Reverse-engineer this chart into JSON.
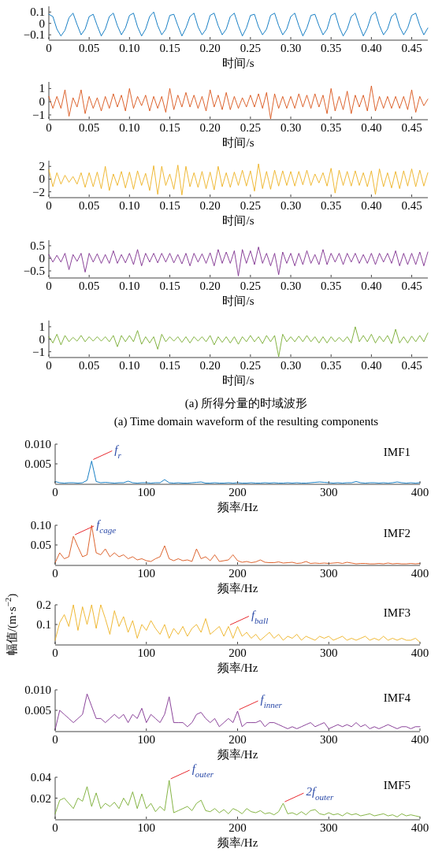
{
  "chart_data": [
    {
      "type": "line",
      "xlabel": "时间/s",
      "xlim": [
        0,
        0.47
      ],
      "ylim": [
        -0.14,
        0.15
      ],
      "xticks": [
        0,
        {
          "value": 0.05,
          "label": "0.05"
        },
        {
          "value": 0.1,
          "label": "0.10"
        },
        {
          "value": 0.15,
          "label": "0.15"
        },
        {
          "value": 0.2,
          "label": "0.20"
        },
        {
          "value": 0.25,
          "label": "0.25"
        },
        {
          "value": 0.3,
          "label": "0.30"
        },
        {
          "value": 0.35,
          "label": "0.35"
        },
        {
          "value": 0.4,
          "label": "0.40"
        },
        {
          "value": 0.45,
          "label": "0.45"
        }
      ],
      "yticks": [
        {
          "value": -0.1,
          "label": "−0.1"
        },
        0,
        0.1
      ],
      "x": [
        0,
        0.005,
        0.01,
        0.015,
        0.02,
        0.025,
        0.03,
        0.035,
        0.04,
        0.045,
        0.05,
        0.055,
        0.06,
        0.065,
        0.07,
        0.075,
        0.08,
        0.085,
        0.09,
        0.095,
        0.1,
        0.105,
        0.11,
        0.115,
        0.12,
        0.125,
        0.13,
        0.135,
        0.14,
        0.145,
        0.15,
        0.155,
        0.16,
        0.165,
        0.17,
        0.175,
        0.18,
        0.185,
        0.19,
        0.195,
        0.2,
        0.205,
        0.21,
        0.215,
        0.22,
        0.225,
        0.23,
        0.235,
        0.24,
        0.245,
        0.25,
        0.255,
        0.26,
        0.265,
        0.27,
        0.275,
        0.28,
        0.285,
        0.29,
        0.295,
        0.3,
        0.305,
        0.31,
        0.315,
        0.32,
        0.325,
        0.33,
        0.335,
        0.34,
        0.345,
        0.35,
        0.355,
        0.36,
        0.365,
        0.37,
        0.375,
        0.38,
        0.385,
        0.39,
        0.395,
        0.4,
        0.405,
        0.41,
        0.415,
        0.42,
        0.425,
        0.43,
        0.435,
        0.44,
        0.445,
        0.45,
        0.455,
        0.46,
        0.465,
        0.47
      ],
      "series": [
        {
          "color": "#0072bd",
          "values": [
            0.08,
            0.06,
            -0.05,
            -0.11,
            -0.06,
            0.05,
            0.09,
            -0.01,
            -0.1,
            -0.05,
            0.06,
            0.08,
            -0.02,
            -0.11,
            -0.05,
            0.06,
            0.09,
            -0.02,
            -0.1,
            -0.04,
            0.07,
            0.09,
            -0.03,
            -0.11,
            -0.05,
            0.06,
            0.1,
            -0.02,
            -0.1,
            -0.05,
            0.07,
            0.08,
            -0.02,
            -0.11,
            -0.04,
            0.06,
            0.09,
            -0.03,
            -0.1,
            -0.05,
            0.07,
            0.09,
            -0.02,
            -0.1,
            -0.05,
            0.06,
            0.09,
            -0.02,
            -0.11,
            -0.04,
            0.07,
            0.08,
            -0.03,
            -0.1,
            -0.05,
            0.07,
            0.09,
            -0.02,
            -0.1,
            -0.05,
            0.06,
            0.09,
            -0.02,
            -0.11,
            -0.04,
            0.07,
            0.08,
            -0.02,
            -0.1,
            -0.05,
            0.07,
            0.09,
            -0.03,
            -0.11,
            -0.05,
            0.06,
            0.09,
            -0.02,
            -0.11,
            -0.04,
            0.07,
            0.1,
            -0.02,
            -0.1,
            -0.05,
            0.06,
            0.09,
            -0.03,
            -0.1,
            -0.04,
            0.07,
            0.09,
            -0.02,
            -0.1,
            -0.04
          ]
        }
      ]
    },
    {
      "type": "line",
      "xlabel": "时间/s",
      "xlim": [
        0,
        0.47
      ],
      "ylim": [
        -1.3,
        1.5
      ],
      "xticks": [
        0,
        {
          "value": 0.05,
          "label": "0.05"
        },
        {
          "value": 0.1,
          "label": "0.10"
        },
        {
          "value": 0.15,
          "label": "0.15"
        },
        {
          "value": 0.2,
          "label": "0.20"
        },
        {
          "value": 0.25,
          "label": "0.25"
        },
        {
          "value": 0.3,
          "label": "0.30"
        },
        {
          "value": 0.35,
          "label": "0.35"
        },
        {
          "value": 0.4,
          "label": "0.40"
        },
        {
          "value": 0.45,
          "label": "0.45"
        }
      ],
      "yticks": [
        {
          "value": -1,
          "label": "−1"
        },
        0,
        1
      ],
      "x": [
        0,
        0.005,
        0.01,
        0.015,
        0.02,
        0.025,
        0.03,
        0.035,
        0.04,
        0.045,
        0.05,
        0.055,
        0.06,
        0.065,
        0.07,
        0.075,
        0.08,
        0.085,
        0.09,
        0.095,
        0.1,
        0.105,
        0.11,
        0.115,
        0.12,
        0.125,
        0.13,
        0.135,
        0.14,
        0.145,
        0.15,
        0.155,
        0.16,
        0.165,
        0.17,
        0.175,
        0.18,
        0.185,
        0.19,
        0.195,
        0.2,
        0.205,
        0.21,
        0.215,
        0.22,
        0.225,
        0.23,
        0.235,
        0.24,
        0.245,
        0.25,
        0.255,
        0.26,
        0.265,
        0.27,
        0.275,
        0.28,
        0.285,
        0.29,
        0.295,
        0.3,
        0.305,
        0.31,
        0.315,
        0.32,
        0.325,
        0.33,
        0.335,
        0.34,
        0.345,
        0.35,
        0.355,
        0.36,
        0.365,
        0.37,
        0.375,
        0.38,
        0.385,
        0.39,
        0.395,
        0.4,
        0.405,
        0.41,
        0.415,
        0.42,
        0.425,
        0.43,
        0.435,
        0.44,
        0.445,
        0.45,
        0.455,
        0.46,
        0.465,
        0.47
      ],
      "series": [
        {
          "color": "#d95319",
          "values": [
            0.4,
            -0.5,
            0.4,
            -0.5,
            0.9,
            -1.1,
            0.3,
            -0.4,
            0.9,
            -0.9,
            0.4,
            -0.5,
            0.3,
            -0.7,
            0.4,
            -0.5,
            0.6,
            -0.4,
            0.5,
            -0.7,
            1.0,
            -0.5,
            0.4,
            -0.3,
            0.5,
            -0.7,
            0.4,
            -0.5,
            0.4,
            -0.8,
            1.0,
            -0.6,
            0.5,
            -0.4,
            0.7,
            -0.4,
            0.5,
            -0.5,
            0.4,
            -0.7,
            0.9,
            -0.4,
            0.5,
            -0.6,
            0.7,
            -0.6,
            0.4,
            -0.5,
            0.3,
            -0.4,
            0.5,
            -0.4,
            0.6,
            -0.5,
            0.7,
            -1.3,
            0.6,
            -0.5,
            0.4,
            -0.5,
            0.4,
            -0.5,
            0.6,
            -0.4,
            0.5,
            -0.5,
            0.6,
            -0.4,
            0.5,
            -0.9,
            1.0,
            -0.7,
            0.4,
            -0.6,
            0.8,
            -0.9,
            0.5,
            -0.4,
            0.5,
            -0.7,
            1.2,
            -0.7,
            0.4,
            -0.5,
            0.4,
            -0.5,
            0.4,
            -0.5,
            0.4,
            -0.6,
            0.9,
            -0.8,
            0.4,
            -0.3,
            0.2
          ]
        }
      ]
    },
    {
      "type": "line",
      "xlabel": "时间/s",
      "xlim": [
        0,
        0.47
      ],
      "ylim": [
        -2.8,
        2.9
      ],
      "xticks": [
        0,
        {
          "value": 0.05,
          "label": "0.05"
        },
        {
          "value": 0.1,
          "label": "0.10"
        },
        {
          "value": 0.15,
          "label": "0.15"
        },
        {
          "value": 0.2,
          "label": "0.20"
        },
        {
          "value": 0.25,
          "label": "0.25"
        },
        {
          "value": 0.3,
          "label": "0.30"
        },
        {
          "value": 0.35,
          "label": "0.35"
        },
        {
          "value": 0.4,
          "label": "0.40"
        },
        {
          "value": 0.45,
          "label": "0.45"
        }
      ],
      "yticks": [
        {
          "value": -2,
          "label": "−2"
        },
        0,
        2
      ],
      "x": [
        0,
        0.005,
        0.01,
        0.015,
        0.02,
        0.025,
        0.03,
        0.035,
        0.04,
        0.045,
        0.05,
        0.055,
        0.06,
        0.065,
        0.07,
        0.075,
        0.08,
        0.085,
        0.09,
        0.095,
        0.1,
        0.105,
        0.11,
        0.115,
        0.12,
        0.125,
        0.13,
        0.135,
        0.14,
        0.145,
        0.15,
        0.155,
        0.16,
        0.165,
        0.17,
        0.175,
        0.18,
        0.185,
        0.19,
        0.195,
        0.2,
        0.205,
        0.21,
        0.215,
        0.22,
        0.225,
        0.23,
        0.235,
        0.24,
        0.245,
        0.25,
        0.255,
        0.26,
        0.265,
        0.27,
        0.275,
        0.28,
        0.285,
        0.29,
        0.295,
        0.3,
        0.305,
        0.31,
        0.315,
        0.32,
        0.325,
        0.33,
        0.335,
        0.34,
        0.345,
        0.35,
        0.355,
        0.36,
        0.365,
        0.37,
        0.375,
        0.38,
        0.385,
        0.39,
        0.395,
        0.4,
        0.405,
        0.41,
        0.415,
        0.42,
        0.425,
        0.43,
        0.435,
        0.44,
        0.445,
        0.45,
        0.455,
        0.46,
        0.465,
        0.47
      ],
      "series": [
        {
          "color": "#edb120",
          "values": [
            1.5,
            -1.2,
            1.0,
            -0.8,
            0.6,
            -0.5,
            0.4,
            -0.8,
            1.0,
            -1.3,
            1.0,
            -1.2,
            1.1,
            -1.5,
            2.0,
            -1.8,
            0.8,
            -1.0,
            1.2,
            -1.4,
            1.1,
            -1.6,
            1.3,
            -1.0,
            0.9,
            -1.8,
            2.1,
            -2.4,
            2.0,
            -1.0,
            0.8,
            -1.6,
            2.2,
            -2.5,
            2.0,
            -1.2,
            1.0,
            -1.3,
            1.2,
            -1.5,
            1.1,
            -1.7,
            2.0,
            -1.2,
            1.0,
            -1.3,
            1.1,
            -1.0,
            1.4,
            -1.1,
            1.3,
            -1.9,
            2.4,
            -1.5,
            1.2,
            -1.6,
            1.4,
            -1.1,
            1.3,
            -1.0,
            1.2,
            -1.1,
            1.2,
            -0.9,
            1.4,
            -1.0,
            0.8,
            -0.6,
            1.0,
            -1.1,
            1.7,
            -2.2,
            1.4,
            -1.0,
            1.2,
            -1.1,
            1.3,
            -1.0,
            1.0,
            -1.2,
            1.3,
            -2.4,
            1.6,
            -1.2,
            1.0,
            -1.4,
            1.2,
            -1.5,
            1.3,
            -1.1,
            1.6,
            -1.2,
            1.4,
            -1.1,
            1.0
          ]
        }
      ]
    },
    {
      "type": "line",
      "xlabel": "时间/s",
      "xlim": [
        0,
        0.47
      ],
      "ylim": [
        -0.75,
        0.72
      ],
      "xticks": [
        0,
        {
          "value": 0.05,
          "label": "0.05"
        },
        {
          "value": 0.1,
          "label": "0.10"
        },
        {
          "value": 0.15,
          "label": "0.15"
        },
        {
          "value": 0.2,
          "label": "0.20"
        },
        {
          "value": 0.25,
          "label": "0.25"
        },
        {
          "value": 0.3,
          "label": "0.30"
        },
        {
          "value": 0.35,
          "label": "0.35"
        },
        {
          "value": 0.4,
          "label": "0.40"
        },
        {
          "value": 0.45,
          "label": "0.45"
        }
      ],
      "yticks": [
        {
          "value": -0.5,
          "label": "−0.5"
        },
        0,
        0.5
      ],
      "x": [
        0,
        0.005,
        0.01,
        0.015,
        0.02,
        0.025,
        0.03,
        0.035,
        0.04,
        0.045,
        0.05,
        0.055,
        0.06,
        0.065,
        0.07,
        0.075,
        0.08,
        0.085,
        0.09,
        0.095,
        0.1,
        0.105,
        0.11,
        0.115,
        0.12,
        0.125,
        0.13,
        0.135,
        0.14,
        0.145,
        0.15,
        0.155,
        0.16,
        0.165,
        0.17,
        0.175,
        0.18,
        0.185,
        0.19,
        0.195,
        0.2,
        0.205,
        0.21,
        0.215,
        0.22,
        0.225,
        0.23,
        0.235,
        0.24,
        0.245,
        0.25,
        0.255,
        0.26,
        0.265,
        0.27,
        0.275,
        0.28,
        0.285,
        0.29,
        0.295,
        0.3,
        0.305,
        0.31,
        0.315,
        0.32,
        0.325,
        0.33,
        0.335,
        0.34,
        0.345,
        0.35,
        0.355,
        0.36,
        0.365,
        0.37,
        0.375,
        0.38,
        0.385,
        0.39,
        0.395,
        0.4,
        0.405,
        0.41,
        0.415,
        0.42,
        0.425,
        0.43,
        0.435,
        0.44,
        0.445,
        0.45,
        0.455,
        0.46,
        0.465,
        0.47
      ],
      "series": [
        {
          "color": "#7e2f8e",
          "values": [
            0.15,
            -0.15,
            0.12,
            -0.15,
            0.2,
            -0.45,
            0.15,
            -0.12,
            0.2,
            -0.55,
            0.2,
            -0.15,
            0.18,
            -0.2,
            0.15,
            -0.2,
            0.3,
            -0.2,
            0.15,
            -0.18,
            0.2,
            -0.25,
            0.35,
            -0.3,
            0.2,
            -0.15,
            0.2,
            -0.18,
            0.2,
            -0.15,
            0.2,
            -0.18,
            0.15,
            -0.22,
            0.2,
            -0.3,
            0.2,
            -0.15,
            0.18,
            -0.2,
            0.22,
            -0.3,
            0.35,
            -0.2,
            0.25,
            -0.2,
            0.3,
            -0.7,
            0.35,
            -0.2,
            0.3,
            -0.25,
            0.45,
            -0.2,
            0.2,
            -0.3,
            0.2,
            -0.65,
            0.25,
            -0.2,
            0.2,
            -0.3,
            0.2,
            -0.25,
            0.3,
            -0.2,
            0.15,
            -0.25,
            0.35,
            -0.25,
            0.2,
            -0.15,
            0.2,
            -0.25,
            0.2,
            -0.15,
            0.2,
            -0.2,
            0.15,
            -0.2,
            0.2,
            -0.25,
            0.2,
            -0.15,
            0.2,
            -0.2,
            0.3,
            -0.3,
            0.2,
            -0.25,
            0.2,
            -0.25,
            0.25,
            -0.3,
            0.25
          ]
        }
      ]
    },
    {
      "type": "line",
      "xlabel": "时间/s",
      "xlim": [
        0,
        0.47
      ],
      "ylim": [
        -1.4,
        1.5
      ],
      "xticks": [
        0,
        {
          "value": 0.05,
          "label": "0.05"
        },
        {
          "value": 0.1,
          "label": "0.10"
        },
        {
          "value": 0.15,
          "label": "0.15"
        },
        {
          "value": 0.2,
          "label": "0.20"
        },
        {
          "value": 0.25,
          "label": "0.25"
        },
        {
          "value": 0.3,
          "label": "0.30"
        },
        {
          "value": 0.35,
          "label": "0.35"
        },
        {
          "value": 0.4,
          "label": "0.40"
        },
        {
          "value": 0.45,
          "label": "0.45"
        }
      ],
      "yticks": [
        {
          "value": -1,
          "label": "−1"
        },
        0,
        1
      ],
      "annotations": [
        "(a) 所得分量的时域波形",
        "(a) Time domain waveform of the resulting components"
      ],
      "x": [
        0,
        0.005,
        0.01,
        0.015,
        0.02,
        0.025,
        0.03,
        0.035,
        0.04,
        0.045,
        0.05,
        0.055,
        0.06,
        0.065,
        0.07,
        0.075,
        0.08,
        0.085,
        0.09,
        0.095,
        0.1,
        0.105,
        0.11,
        0.115,
        0.12,
        0.125,
        0.13,
        0.135,
        0.14,
        0.145,
        0.15,
        0.155,
        0.16,
        0.165,
        0.17,
        0.175,
        0.18,
        0.185,
        0.19,
        0.195,
        0.2,
        0.205,
        0.21,
        0.215,
        0.22,
        0.225,
        0.23,
        0.235,
        0.24,
        0.245,
        0.25,
        0.255,
        0.26,
        0.265,
        0.27,
        0.275,
        0.28,
        0.285,
        0.29,
        0.295,
        0.3,
        0.305,
        0.31,
        0.315,
        0.32,
        0.325,
        0.33,
        0.335,
        0.34,
        0.345,
        0.35,
        0.355,
        0.36,
        0.365,
        0.37,
        0.375,
        0.38,
        0.385,
        0.39,
        0.395,
        0.4,
        0.405,
        0.41,
        0.415,
        0.42,
        0.425,
        0.43,
        0.435,
        0.44,
        0.445,
        0.45,
        0.455,
        0.46,
        0.465,
        0.47
      ],
      "series": [
        {
          "color": "#77ac30",
          "values": [
            0.2,
            -0.3,
            0.4,
            -0.45,
            0.3,
            -0.2,
            0.15,
            -0.15,
            0.3,
            -0.2,
            0.2,
            -0.15,
            0.2,
            -0.15,
            0.2,
            -0.2,
            0.3,
            -0.6,
            0.3,
            -0.2,
            0.3,
            -0.2,
            0.7,
            -0.4,
            0.2,
            -0.3,
            0.2,
            -0.8,
            0.4,
            -0.2,
            0.2,
            -0.15,
            0.2,
            -0.25,
            0.2,
            -0.3,
            0.2,
            -0.15,
            0.2,
            -0.2,
            0.3,
            -0.45,
            0.2,
            -0.25,
            0.2,
            -0.3,
            0.2,
            -0.4,
            0.2,
            -0.2,
            0.3,
            -0.2,
            0.2,
            -0.35,
            0.3,
            -0.2,
            0.3,
            -1.4,
            0.4,
            -0.2,
            0.2,
            -0.2,
            0.25,
            -0.2,
            0.3,
            -0.2,
            0.2,
            -0.3,
            0.2,
            -0.3,
            0.2,
            -0.2,
            0.15,
            -0.2,
            0.2,
            -0.3,
            1.0,
            -0.2,
            0.3,
            -0.2,
            0.4,
            -0.3,
            0.25,
            -0.2,
            0.3,
            -0.35,
            0.8,
            -0.3,
            0.2,
            -0.3,
            0.25,
            -0.2,
            0.3,
            -0.2,
            0.5
          ]
        }
      ]
    },
    {
      "type": "line",
      "xlabel": "频率/Hz",
      "xlim": [
        0,
        400
      ],
      "ylim": [
        0,
        0.01
      ],
      "xticks": [
        0,
        100,
        200,
        300,
        400
      ],
      "yticks": [
        0.005,
        {
          "value": 0.01,
          "label": "0.010"
        }
      ],
      "annotations": [
        {
          "text": "f$_{r}$",
          "x": 40,
          "y": 0.0057
        },
        "IMF1"
      ],
      "x": [
        0,
        5,
        10,
        15,
        20,
        25,
        30,
        35,
        40,
        45,
        50,
        55,
        60,
        65,
        70,
        75,
        80,
        85,
        90,
        95,
        100,
        105,
        110,
        115,
        120,
        125,
        130,
        135,
        140,
        145,
        150,
        155,
        160,
        165,
        170,
        175,
        180,
        185,
        190,
        195,
        200,
        205,
        210,
        215,
        220,
        225,
        230,
        235,
        240,
        245,
        250,
        255,
        260,
        265,
        270,
        275,
        280,
        285,
        290,
        295,
        300,
        305,
        310,
        315,
        320,
        325,
        330,
        335,
        340,
        345,
        350,
        355,
        360,
        365,
        370,
        375,
        380,
        385,
        390,
        395,
        400
      ],
      "series": [
        {
          "color": "#0072bd",
          "values": [
            0.0005,
            0.0002,
            0.0001,
            0.0002,
            0.0002,
            0.0001,
            0.0002,
            0.0008,
            0.0057,
            0.0005,
            0.0002,
            0.0003,
            0.0002,
            0.0001,
            0.0002,
            0.0002,
            0.0006,
            0.0002,
            0.0001,
            0.0002,
            0.0002,
            0.0001,
            0.0002,
            0.0002,
            0.001,
            0.0002,
            0.0001,
            0.0002,
            0.0001,
            0.0001,
            0.0002,
            0.0003,
            0.0004,
            0.0001,
            0.0001,
            0.0002,
            0.0001,
            0.0001,
            0.0002,
            0.0001,
            0.0002,
            0.0001,
            0.0001,
            0.0002,
            0.0001,
            0.0001,
            0.0002,
            0.0001,
            0.0002,
            0.0001,
            0.0001,
            0.0002,
            0.0001,
            0.0002,
            0.0001,
            0.0001,
            0.0002,
            0.0003,
            0.0004,
            0.0003,
            0.0002,
            0.0001,
            0.0002,
            0.0001,
            0.0002,
            0.0002,
            0.0005,
            0.0002,
            0.0001,
            0.0002,
            0.0002,
            0.0001,
            0.0002,
            0.0001,
            0.0002,
            0.0004,
            0.0002,
            0.0001,
            0.0002,
            0.0001,
            0.0002
          ]
        }
      ]
    },
    {
      "type": "line",
      "xlabel": "频率/Hz",
      "xlim": [
        0,
        400
      ],
      "ylim": [
        0,
        0.1
      ],
      "xticks": [
        0,
        100,
        200,
        300,
        400
      ],
      "yticks": [
        0.05,
        {
          "value": 0.1,
          "label": "0.10"
        }
      ],
      "annotations": [
        {
          "text": "f$_{cage}$",
          "x": 20,
          "y": 0.072
        },
        "IMF2"
      ],
      "x": [
        0,
        5,
        10,
        15,
        20,
        25,
        30,
        35,
        40,
        45,
        50,
        55,
        60,
        65,
        70,
        75,
        80,
        85,
        90,
        95,
        100,
        105,
        110,
        115,
        120,
        125,
        130,
        135,
        140,
        145,
        150,
        155,
        160,
        165,
        170,
        175,
        180,
        185,
        190,
        195,
        200,
        205,
        210,
        215,
        220,
        225,
        230,
        235,
        240,
        245,
        250,
        255,
        260,
        265,
        270,
        275,
        280,
        285,
        290,
        295,
        300,
        305,
        310,
        315,
        320,
        325,
        330,
        335,
        340,
        345,
        350,
        355,
        360,
        365,
        370,
        375,
        380,
        385,
        390,
        395,
        400
      ],
      "series": [
        {
          "color": "#d95319",
          "values": [
            0.005,
            0.03,
            0.015,
            0.02,
            0.072,
            0.045,
            0.02,
            0.025,
            0.1,
            0.03,
            0.025,
            0.04,
            0.02,
            0.03,
            0.02,
            0.025,
            0.015,
            0.02,
            0.012,
            0.015,
            0.01,
            0.008,
            0.015,
            0.02,
            0.048,
            0.015,
            0.01,
            0.015,
            0.01,
            0.012,
            0.008,
            0.04,
            0.015,
            0.02,
            0.01,
            0.025,
            0.008,
            0.01,
            0.012,
            0.025,
            0.01,
            0.006,
            0.008,
            0.005,
            0.007,
            0.012,
            0.006,
            0.005,
            0.005,
            0.007,
            0.004,
            0.005,
            0.006,
            0.003,
            0.004,
            0.008,
            0.003,
            0.004,
            0.003,
            0.004,
            0.003,
            0.004,
            0.005,
            0.003,
            0.006,
            0.004,
            0.002,
            0.003,
            0.003,
            0.002,
            0.002,
            0.003,
            0.002,
            0.004,
            0.002,
            0.003,
            0.002,
            0.002,
            0.003,
            0.002,
            0.003
          ]
        }
      ]
    },
    {
      "type": "line",
      "xlabel": "频率/Hz",
      "ylabel": "幅值/(m·s$^{−2}$)",
      "xlim": [
        0,
        400
      ],
      "ylim": [
        0,
        0.2
      ],
      "xticks": [
        0,
        100,
        200,
        300,
        400
      ],
      "yticks": [
        0.1,
        0.2
      ],
      "annotations": [
        {
          "text": "f$_{ball}$",
          "x": 190,
          "y": 0.09
        },
        "IMF3"
      ],
      "x": [
        0,
        5,
        10,
        15,
        20,
        25,
        30,
        35,
        40,
        45,
        50,
        55,
        60,
        65,
        70,
        75,
        80,
        85,
        90,
        95,
        100,
        105,
        110,
        115,
        120,
        125,
        130,
        135,
        140,
        145,
        150,
        155,
        160,
        165,
        170,
        175,
        180,
        185,
        190,
        195,
        200,
        205,
        210,
        215,
        220,
        225,
        230,
        235,
        240,
        245,
        250,
        255,
        260,
        265,
        270,
        275,
        280,
        285,
        290,
        295,
        300,
        305,
        310,
        315,
        320,
        325,
        330,
        335,
        340,
        345,
        350,
        355,
        360,
        365,
        370,
        375,
        380,
        385,
        390,
        395,
        400
      ],
      "series": [
        {
          "color": "#edb120",
          "values": [
            0.02,
            0.11,
            0.15,
            0.09,
            0.2,
            0.07,
            0.19,
            0.1,
            0.2,
            0.08,
            0.2,
            0.13,
            0.05,
            0.17,
            0.09,
            0.14,
            0.06,
            0.12,
            0.03,
            0.1,
            0.07,
            0.12,
            0.08,
            0.05,
            0.1,
            0.03,
            0.08,
            0.05,
            0.09,
            0.04,
            0.08,
            0.1,
            0.06,
            0.13,
            0.05,
            0.07,
            0.09,
            0.04,
            0.09,
            0.03,
            0.09,
            0.04,
            0.06,
            0.03,
            0.05,
            0.02,
            0.04,
            0.06,
            0.03,
            0.05,
            0.02,
            0.04,
            0.03,
            0.05,
            0.02,
            0.04,
            0.03,
            0.02,
            0.04,
            0.03,
            0.04,
            0.02,
            0.03,
            0.04,
            0.02,
            0.03,
            0.02,
            0.03,
            0.04,
            0.02,
            0.03,
            0.02,
            0.04,
            0.02,
            0.03,
            0.02,
            0.03,
            0.02,
            0.02,
            0.03,
            0.01
          ]
        }
      ]
    },
    {
      "type": "line",
      "xlabel": "频率/Hz",
      "xlim": [
        0,
        400
      ],
      "ylim": [
        0,
        0.01
      ],
      "xticks": [
        0,
        100,
        200,
        300,
        400
      ],
      "yticks": [
        0.005,
        {
          "value": 0.01,
          "label": "0.010"
        }
      ],
      "annotations": [
        {
          "text": "f$_{inner}$",
          "x": 200,
          "y": 0.0048
        },
        "IMF4"
      ],
      "x": [
        0,
        5,
        10,
        15,
        20,
        25,
        30,
        35,
        40,
        45,
        50,
        55,
        60,
        65,
        70,
        75,
        80,
        85,
        90,
        95,
        100,
        105,
        110,
        115,
        120,
        125,
        130,
        135,
        140,
        145,
        150,
        155,
        160,
        165,
        170,
        175,
        180,
        185,
        190,
        195,
        200,
        205,
        210,
        215,
        220,
        225,
        230,
        235,
        240,
        245,
        250,
        255,
        260,
        265,
        270,
        275,
        280,
        285,
        290,
        295,
        300,
        305,
        310,
        315,
        320,
        325,
        330,
        335,
        340,
        345,
        350,
        355,
        360,
        365,
        370,
        375,
        380,
        385,
        390,
        395,
        400
      ],
      "series": [
        {
          "color": "#7e2f8e",
          "values": [
            0.0003,
            0.005,
            0.004,
            0.003,
            0.002,
            0.003,
            0.004,
            0.009,
            0.006,
            0.003,
            0.003,
            0.002,
            0.003,
            0.004,
            0.003,
            0.004,
            0.002,
            0.004,
            0.003,
            0.0055,
            0.002,
            0.004,
            0.003,
            0.002,
            0.004,
            0.0083,
            0.002,
            0.002,
            0.002,
            0.001,
            0.002,
            0.004,
            0.0045,
            0.003,
            0.002,
            0.003,
            0.001,
            0.002,
            0.003,
            0.002,
            0.0048,
            0.001,
            0.002,
            0.002,
            0.002,
            0.0025,
            0.001,
            0.002,
            0.002,
            0.0015,
            0.001,
            0.0005,
            0.001,
            0.0005,
            0.001,
            0.0015,
            0.002,
            0.001,
            0.0015,
            0.002,
            0.0005,
            0.001,
            0.0015,
            0.001,
            0.0015,
            0.001,
            0.002,
            0.001,
            0.0015,
            0.0005,
            0.001,
            0.0005,
            0.001,
            0.0015,
            0.001,
            0.0005,
            0.001,
            0.001,
            0.0005,
            0.001,
            0.001
          ]
        }
      ]
    },
    {
      "type": "line",
      "xlabel": "频率/Hz",
      "xlim": [
        0,
        400
      ],
      "ylim": [
        0,
        0.04
      ],
      "xticks": [
        0,
        100,
        200,
        300,
        400
      ],
      "yticks": [
        0.02,
        0.04
      ],
      "annotations": [
        {
          "text": "f$_{outer}$",
          "x": 125,
          "y": 0.037
        },
        {
          "text": "2f$_{outer}$",
          "x": 250,
          "y": 0.015
        },
        "IMF5"
      ],
      "x": [
        0,
        5,
        10,
        15,
        20,
        25,
        30,
        35,
        40,
        45,
        50,
        55,
        60,
        65,
        70,
        75,
        80,
        85,
        90,
        95,
        100,
        105,
        110,
        115,
        120,
        125,
        130,
        135,
        140,
        145,
        150,
        155,
        160,
        165,
        170,
        175,
        180,
        185,
        190,
        195,
        200,
        205,
        210,
        215,
        220,
        225,
        230,
        235,
        240,
        245,
        250,
        255,
        260,
        265,
        270,
        275,
        280,
        285,
        290,
        295,
        300,
        305,
        310,
        315,
        320,
        325,
        330,
        335,
        340,
        345,
        350,
        355,
        360,
        365,
        370,
        375,
        380,
        385,
        390,
        395,
        400
      ],
      "series": [
        {
          "color": "#77ac30",
          "values": [
            0.005,
            0.018,
            0.02,
            0.015,
            0.01,
            0.02,
            0.017,
            0.031,
            0.012,
            0.025,
            0.01,
            0.015,
            0.012,
            0.016,
            0.01,
            0.02,
            0.013,
            0.026,
            0.01,
            0.024,
            0.01,
            0.015,
            0.007,
            0.012,
            0.008,
            0.037,
            0.006,
            0.008,
            0.01,
            0.012,
            0.008,
            0.015,
            0.018,
            0.008,
            0.007,
            0.01,
            0.006,
            0.009,
            0.005,
            0.01,
            0.008,
            0.005,
            0.01,
            0.007,
            0.006,
            0.008,
            0.005,
            0.006,
            0.004,
            0.007,
            0.015,
            0.005,
            0.006,
            0.004,
            0.007,
            0.004,
            0.008,
            0.009,
            0.005,
            0.004,
            0.006,
            0.004,
            0.005,
            0.003,
            0.006,
            0.004,
            0.005,
            0.003,
            0.004,
            0.005,
            0.003,
            0.004,
            0.005,
            0.003,
            0.004,
            0.002,
            0.005,
            0.003,
            0.004,
            0.003,
            0.002
          ]
        }
      ]
    }
  ]
}
